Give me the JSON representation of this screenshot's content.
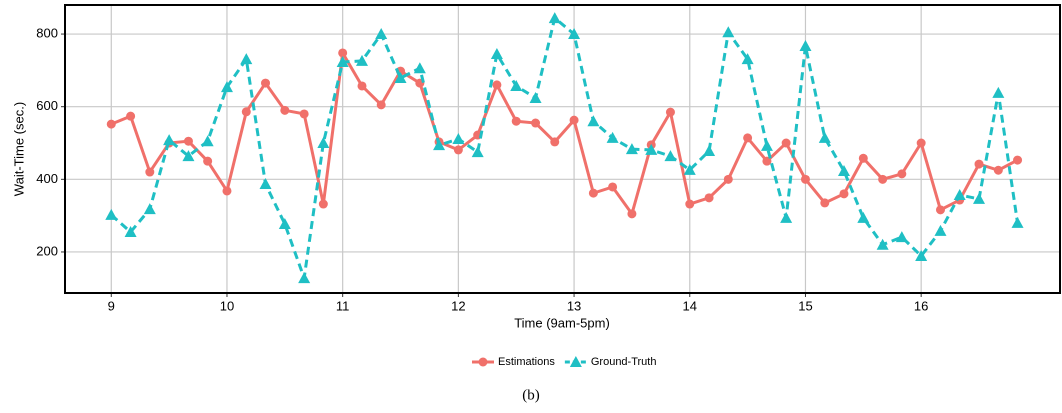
{
  "chart_data": {
    "type": "line",
    "xlabel": "Time (9am-5pm)",
    "ylabel": "Wait-Time (sec.)",
    "caption": "(b)",
    "x": [
      9,
      9.167,
      9.333,
      9.5,
      9.667,
      9.833,
      10,
      10.167,
      10.333,
      10.5,
      10.667,
      10.833,
      11,
      11.167,
      11.333,
      11.5,
      11.667,
      11.833,
      12,
      12.167,
      12.333,
      12.5,
      12.667,
      12.833,
      13,
      13.167,
      13.333,
      13.5,
      13.667,
      13.833,
      14,
      14.167,
      14.333,
      14.5,
      14.667,
      14.833,
      15,
      15.167,
      15.333,
      15.5,
      15.667,
      15.833,
      16,
      16.167,
      16.333,
      16.5,
      16.667,
      16.833
    ],
    "series": [
      {
        "name": "Estimations",
        "color": "#f0706a",
        "marker": "circle",
        "dashed": false,
        "values": [
          552,
          574,
          420,
          500,
          505,
          450,
          368,
          586,
          665,
          590,
          580,
          332,
          748,
          657,
          605,
          698,
          665,
          503,
          481,
          522,
          660,
          560,
          555,
          503,
          563,
          362,
          379,
          305,
          495,
          585,
          332,
          349,
          400,
          514,
          450,
          500,
          400,
          335,
          360,
          458,
          400,
          415,
          500,
          316,
          343,
          442,
          425,
          453
        ]
      },
      {
        "name": "Ground-Truth",
        "color": "#1fbfc4",
        "marker": "triangle",
        "dashed": true,
        "values": [
          302,
          255,
          318,
          508,
          464,
          505,
          654,
          731,
          387,
          277,
          128,
          500,
          723,
          726,
          800,
          679,
          706,
          494,
          511,
          475,
          745,
          657,
          624,
          844,
          800,
          560,
          514,
          483,
          481,
          464,
          426,
          478,
          805,
          731,
          492,
          294,
          767,
          514,
          423,
          294,
          220,
          241,
          189,
          258,
          357,
          346,
          638,
          280
        ]
      }
    ],
    "xlim": [
      8.6,
      17.2
    ],
    "xticks": [
      9,
      10,
      11,
      12,
      13,
      14,
      15,
      16
    ],
    "ylim": [
      87,
      880
    ],
    "yticks": [
      200,
      400,
      600,
      800
    ],
    "grid": true,
    "legend": "bottom"
  }
}
